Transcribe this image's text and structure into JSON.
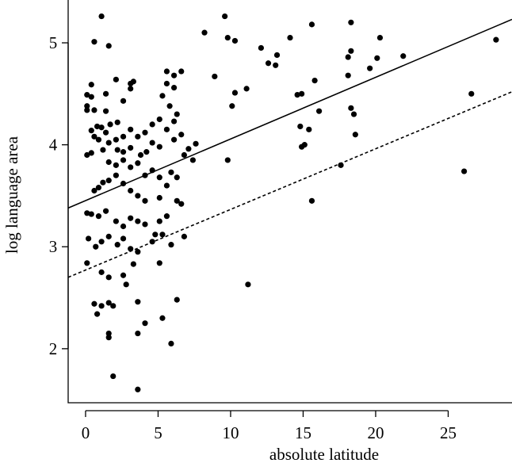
{
  "chart_data": {
    "type": "scatter",
    "title": "",
    "xlabel": "absolute latitude",
    "ylabel": "log language area",
    "xlim": [
      -1.2,
      29.4
    ],
    "ylim": [
      1.47,
      5.42
    ],
    "x_ticks": [
      0,
      5,
      10,
      15,
      20,
      25
    ],
    "y_ticks": [
      2,
      3,
      4,
      5
    ],
    "x_tick_labels": [
      "0",
      "5",
      "10",
      "15",
      "20",
      "25"
    ],
    "y_tick_labels": [
      "2",
      "3",
      "4",
      "5"
    ],
    "grid": false,
    "legend": "none",
    "lines": [
      {
        "style": "solid",
        "x": [
          -1.2,
          29.4
        ],
        "y": [
          3.38,
          5.23
        ]
      },
      {
        "style": "dashed",
        "x": [
          -1.2,
          29.4
        ],
        "y": [
          2.7,
          4.52
        ]
      }
    ],
    "points": [
      [
        1.1,
        5.26
      ],
      [
        0.6,
        5.01
      ],
      [
        1.6,
        4.97
      ],
      [
        2.1,
        4.64
      ],
      [
        3.1,
        4.6
      ],
      [
        3.3,
        4.62
      ],
      [
        0.4,
        4.59
      ],
      [
        0.1,
        4.49
      ],
      [
        0.4,
        4.47
      ],
      [
        1.4,
        4.5
      ],
      [
        0.1,
        4.38
      ],
      [
        0.1,
        4.34
      ],
      [
        0.6,
        4.34
      ],
      [
        1.4,
        4.33
      ],
      [
        2.6,
        4.43
      ],
      [
        3.1,
        4.55
      ],
      [
        2.2,
        4.22
      ],
      [
        1.7,
        4.2
      ],
      [
        0.8,
        4.18
      ],
      [
        1.1,
        4.17
      ],
      [
        0.4,
        4.14
      ],
      [
        1.4,
        4.12
      ],
      [
        0.6,
        4.08
      ],
      [
        0.9,
        4.05
      ],
      [
        2.1,
        4.05
      ],
      [
        2.6,
        4.08
      ],
      [
        3.1,
        4.15
      ],
      [
        3.6,
        4.08
      ],
      [
        4.1,
        4.12
      ],
      [
        4.6,
        4.2
      ],
      [
        0.1,
        3.9
      ],
      [
        0.4,
        3.92
      ],
      [
        1.2,
        3.95
      ],
      [
        1.6,
        4.02
      ],
      [
        2.2,
        3.95
      ],
      [
        2.6,
        3.93
      ],
      [
        3.1,
        3.97
      ],
      [
        3.8,
        3.9
      ],
      [
        4.2,
        3.93
      ],
      [
        4.6,
        4.02
      ],
      [
        5.1,
        3.98
      ],
      [
        1.6,
        3.83
      ],
      [
        2.1,
        3.8
      ],
      [
        2.6,
        3.85
      ],
      [
        3.1,
        3.78
      ],
      [
        3.6,
        3.82
      ],
      [
        4.1,
        3.7
      ],
      [
        4.6,
        3.75
      ],
      [
        5.1,
        3.68
      ],
      [
        0.6,
        3.55
      ],
      [
        0.9,
        3.58
      ],
      [
        1.2,
        3.63
      ],
      [
        1.6,
        3.65
      ],
      [
        2.1,
        3.7
      ],
      [
        2.6,
        3.62
      ],
      [
        3.1,
        3.55
      ],
      [
        3.6,
        3.5
      ],
      [
        4.1,
        3.45
      ],
      [
        5.1,
        3.48
      ],
      [
        0.1,
        3.33
      ],
      [
        0.4,
        3.32
      ],
      [
        0.9,
        3.3
      ],
      [
        1.4,
        3.35
      ],
      [
        2.1,
        3.25
      ],
      [
        2.6,
        3.2
      ],
      [
        3.1,
        3.28
      ],
      [
        3.6,
        3.25
      ],
      [
        4.1,
        3.22
      ],
      [
        5.1,
        3.25
      ],
      [
        0.2,
        3.08
      ],
      [
        0.7,
        3.0
      ],
      [
        1.1,
        3.05
      ],
      [
        1.6,
        3.1
      ],
      [
        2.2,
        3.02
      ],
      [
        2.6,
        3.08
      ],
      [
        3.1,
        2.98
      ],
      [
        3.6,
        2.95
      ],
      [
        4.6,
        3.05
      ],
      [
        4.8,
        3.12
      ],
      [
        0.1,
        2.84
      ],
      [
        1.1,
        2.75
      ],
      [
        1.6,
        2.7
      ],
      [
        2.6,
        2.72
      ],
      [
        3.3,
        2.83
      ],
      [
        5.1,
        2.84
      ],
      [
        2.8,
        2.63
      ],
      [
        0.6,
        2.44
      ],
      [
        1.1,
        2.42
      ],
      [
        1.6,
        2.45
      ],
      [
        1.9,
        2.42
      ],
      [
        3.6,
        2.46
      ],
      [
        0.8,
        2.34
      ],
      [
        1.6,
        2.15
      ],
      [
        1.6,
        2.11
      ],
      [
        3.6,
        2.15
      ],
      [
        4.1,
        2.25
      ],
      [
        5.3,
        2.3
      ],
      [
        1.9,
        1.73
      ],
      [
        3.6,
        1.6
      ],
      [
        5.9,
        2.05
      ],
      [
        6.3,
        2.48
      ],
      [
        6.8,
        3.1
      ],
      [
        5.6,
        4.72
      ],
      [
        6.1,
        4.68
      ],
      [
        6.6,
        4.72
      ],
      [
        5.6,
        4.6
      ],
      [
        6.1,
        4.56
      ],
      [
        5.3,
        4.48
      ],
      [
        5.8,
        4.38
      ],
      [
        6.3,
        4.3
      ],
      [
        5.1,
        4.25
      ],
      [
        6.1,
        4.23
      ],
      [
        5.6,
        4.15
      ],
      [
        6.6,
        4.1
      ],
      [
        6.1,
        4.05
      ],
      [
        7.1,
        3.96
      ],
      [
        7.6,
        4.01
      ],
      [
        6.8,
        3.9
      ],
      [
        7.4,
        3.85
      ],
      [
        6.3,
        3.68
      ],
      [
        5.6,
        3.6
      ],
      [
        5.9,
        3.73
      ],
      [
        6.3,
        3.45
      ],
      [
        5.6,
        3.3
      ],
      [
        5.3,
        3.12
      ],
      [
        5.9,
        3.02
      ],
      [
        6.6,
        3.42
      ],
      [
        8.2,
        5.1
      ],
      [
        9.6,
        5.26
      ],
      [
        9.8,
        5.05
      ],
      [
        10.3,
        5.02
      ],
      [
        8.9,
        4.67
      ],
      [
        10.3,
        4.51
      ],
      [
        10.1,
        4.38
      ],
      [
        11.1,
        4.55
      ],
      [
        9.8,
        3.85
      ],
      [
        11.2,
        2.63
      ],
      [
        12.1,
        4.95
      ],
      [
        12.6,
        4.8
      ],
      [
        13.1,
        4.78
      ],
      [
        13.2,
        4.88
      ],
      [
        14.1,
        5.05
      ],
      [
        15.6,
        5.18
      ],
      [
        14.6,
        4.49
      ],
      [
        14.9,
        4.5
      ],
      [
        15.8,
        4.63
      ],
      [
        14.8,
        4.18
      ],
      [
        15.4,
        4.15
      ],
      [
        16.1,
        4.33
      ],
      [
        14.9,
        3.98
      ],
      [
        15.1,
        4.0
      ],
      [
        15.6,
        3.45
      ],
      [
        17.6,
        3.8
      ],
      [
        18.1,
        4.86
      ],
      [
        18.3,
        4.92
      ],
      [
        18.3,
        4.36
      ],
      [
        18.5,
        4.3
      ],
      [
        18.6,
        4.1
      ],
      [
        18.1,
        4.68
      ],
      [
        18.3,
        5.2
      ],
      [
        19.6,
        4.75
      ],
      [
        20.1,
        4.85
      ],
      [
        20.3,
        5.05
      ],
      [
        21.9,
        4.87
      ],
      [
        26.1,
        3.74
      ],
      [
        26.6,
        4.5
      ],
      [
        28.3,
        5.03
      ]
    ]
  }
}
